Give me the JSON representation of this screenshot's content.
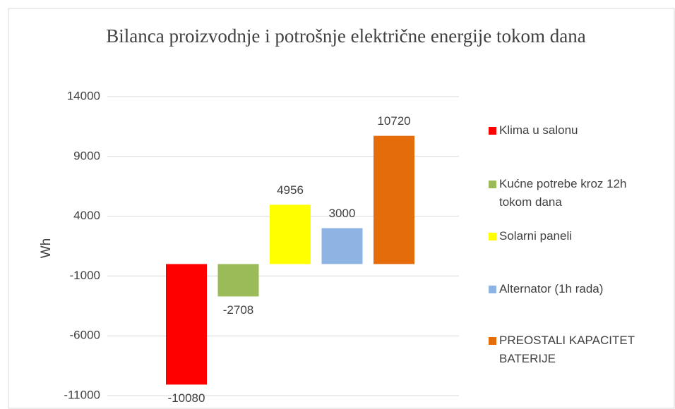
{
  "chart_data": {
    "type": "bar",
    "title": "Bilanca proizvodnje i potrošnje električne energije tokom dana",
    "ylabel": "Wh",
    "categories": [
      null
    ],
    "series": [
      {
        "name": "Klima u salonu",
        "color": "#ff0000",
        "values": [
          -10080
        ]
      },
      {
        "name": "Kućne potrebe kroz 12h tokom dana",
        "color": "#9bbb59",
        "values": [
          -2708
        ]
      },
      {
        "name": "Solarni paneli",
        "color": "#ffff00",
        "values": [
          4956
        ]
      },
      {
        "name": "Alternator (1h rada)",
        "color": "#8db4e2",
        "values": [
          3000
        ]
      },
      {
        "name": "PREOSTALI KAPACITET BATERIJE",
        "color": "#e46c0a",
        "values": [
          10720
        ]
      }
    ],
    "ylim": [
      -11000,
      14000
    ],
    "yticks": [
      -11000,
      -6000,
      -1000,
      4000,
      9000,
      14000
    ],
    "grid": true,
    "legend": "right"
  }
}
